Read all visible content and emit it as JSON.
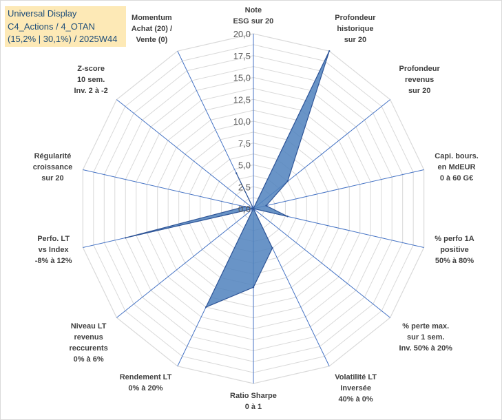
{
  "title": {
    "lines": [
      "Universal Display",
      "C4_Actions / 4_OTAN",
      "(15,2% | 30,1%) / 2025W44"
    ]
  },
  "chart_data": {
    "type": "radar",
    "title": "Universal Display",
    "rlim": [
      0,
      20
    ],
    "rticks": [
      "0,0",
      "2,5",
      "5,0",
      "7,5",
      "10,0",
      "12,5",
      "15,0",
      "17,5",
      "20,0"
    ],
    "rtick_values": [
      0,
      2.5,
      5,
      7.5,
      10,
      12.5,
      15,
      17.5,
      20
    ],
    "categories": [
      {
        "label": [
          "Note",
          "ESG sur 20"
        ]
      },
      {
        "label": [
          "Profondeur",
          "historique",
          "sur 20"
        ]
      },
      {
        "label": [
          "Profondeur",
          "revenus",
          "sur 20"
        ]
      },
      {
        "label": [
          "Capi. bours.",
          "en MdEUR",
          "0 à 60 G€"
        ]
      },
      {
        "label": [
          "% perfo 1A",
          "positive",
          "50% à 80%"
        ]
      },
      {
        "label": [
          "% perte max.",
          "sur 1 sem.",
          "Inv. 50% à 20%"
        ]
      },
      {
        "label": [
          "Volatilité LT",
          "Inversée",
          "40% à 0%"
        ]
      },
      {
        "label": [
          "Ratio Sharpe",
          "0 à 1"
        ]
      },
      {
        "label": [
          "Rendement LT",
          "0% à 20%"
        ]
      },
      {
        "label": [
          "Niveau LT",
          "revenus",
          "reccurents",
          "0% à 6%"
        ]
      },
      {
        "label": [
          "Perfo. LT",
          "vs Index",
          "-8% à 12%"
        ]
      },
      {
        "label": [
          "Régularité",
          "croissance",
          "sur 20"
        ]
      },
      {
        "label": [
          "Z-score",
          "10 sem.",
          "Inv. 2 à -2"
        ]
      },
      {
        "label": [
          "Momentum",
          "Achat (20) /",
          "Vente (0)"
        ]
      }
    ],
    "series": [
      {
        "name": "Universal Display",
        "values": [
          0,
          20,
          5,
          1.5,
          4,
          0,
          5,
          9,
          12.5,
          0,
          15,
          1,
          0,
          4.5
        ],
        "color": "#4f81bd"
      }
    ]
  }
}
